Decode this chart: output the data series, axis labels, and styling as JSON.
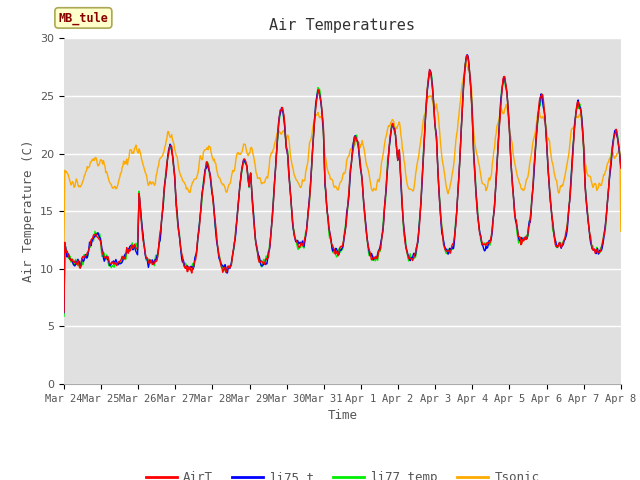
{
  "title": "Air Temperatures",
  "xlabel": "Time",
  "ylabel": "Air Temperature (C)",
  "ylim": [
    0,
    30
  ],
  "yticks": [
    0,
    5,
    10,
    15,
    20,
    25,
    30
  ],
  "xlabels": [
    "Mar 24",
    "Mar 25",
    "Mar 26",
    "Mar 27",
    "Mar 28",
    "Mar 29",
    "Mar 30",
    "Mar 31",
    "Apr 1",
    "Apr 2",
    "Apr 3",
    "Apr 4",
    "Apr 5",
    "Apr 6",
    "Apr 7",
    "Apr 8"
  ],
  "legend_labels": [
    "AirT",
    "li75_t",
    "li77_temp",
    "Tsonic"
  ],
  "line_colors": [
    "#ff0000",
    "#0000ff",
    "#00ee00",
    "#ffaa00"
  ],
  "site_label": "MB_tule",
  "site_label_color": "#880000",
  "site_label_bg": "#ffffcc",
  "site_label_edge": "#aaa855",
  "bg_color": "#e0e0e0",
  "line_width": 1.0,
  "grid_color": "#ffffff",
  "font": "monospace"
}
